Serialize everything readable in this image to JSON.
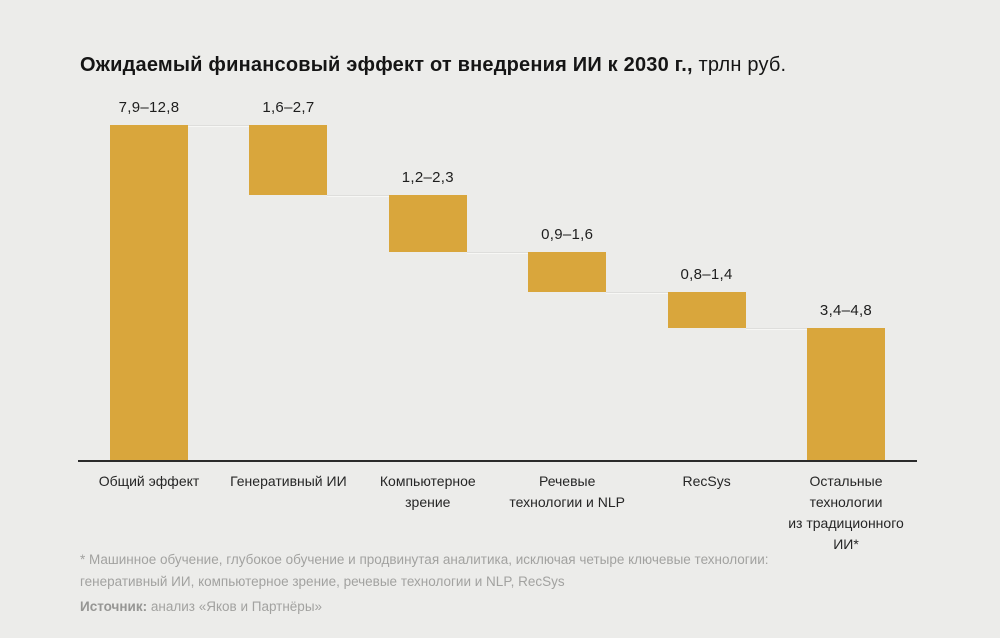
{
  "title": {
    "bold": "Ожидаемый финансовый эффект от внедрения ИИ к 2030 г.,",
    "unit": "трлн руб."
  },
  "chart_data": {
    "type": "bar",
    "subtype": "waterfall",
    "title": "Ожидаемый финансовый эффект от внедрения ИИ к 2030 г., трлн руб.",
    "unit": "трлн руб.",
    "bar_color": "#D9A63C",
    "axis_color": "#2B2B2B",
    "ylim": [
      0,
      10.35
    ],
    "legend": "none",
    "grid": false,
    "categories": [
      "Общий эффект",
      "Генеративный ИИ",
      "Компьютерное зрение",
      "Речевые технологии и NLP",
      "RecSys",
      "Остальные технологии из традиционного ИИ*"
    ],
    "bars": [
      {
        "category_lines": [
          "Общий эффект"
        ],
        "range_label": "7,9–12,8",
        "low": 7.9,
        "high": 12.8,
        "mid": 10.35,
        "role": "total"
      },
      {
        "category_lines": [
          "Генеративный ИИ"
        ],
        "range_label": "1,6–2,7",
        "low": 1.6,
        "high": 2.7,
        "mid": 2.15,
        "role": "component"
      },
      {
        "category_lines": [
          "Компьютерное",
          "зрение"
        ],
        "range_label": "1,2–2,3",
        "low": 1.2,
        "high": 2.3,
        "mid": 1.75,
        "role": "component"
      },
      {
        "category_lines": [
          "Речевые",
          "технологии и NLP"
        ],
        "range_label": "0,9–1,6",
        "low": 0.9,
        "high": 1.6,
        "mid": 1.25,
        "role": "component"
      },
      {
        "category_lines": [
          "RecSys"
        ],
        "range_label": "0,8–1,4",
        "low": 0.8,
        "high": 1.4,
        "mid": 1.1,
        "role": "component"
      },
      {
        "category_lines": [
          "Остальные",
          "технологии",
          "из традиционного",
          "ИИ*"
        ],
        "range_label": "3,4–4,8",
        "low": 3.4,
        "high": 4.8,
        "mid": 4.1,
        "role": "component"
      }
    ]
  },
  "footnote": {
    "line1": "* Машинное обучение, глубокое обучение и продвинутая аналитика, исключая четыре ключевые технологии:",
    "line2": "генеративный ИИ, компьютерное зрение, речевые технологии и NLP, RecSys"
  },
  "source": {
    "label": "Источник:",
    "text": "анализ «Яков и Партнёры»"
  },
  "colors": {
    "background": "#ECECEA",
    "bar": "#D9A63C",
    "axis": "#2B2B2B",
    "title_text": "#151515",
    "label_text": "#1E1E1E",
    "footnote_text": "#A2A2A0"
  }
}
